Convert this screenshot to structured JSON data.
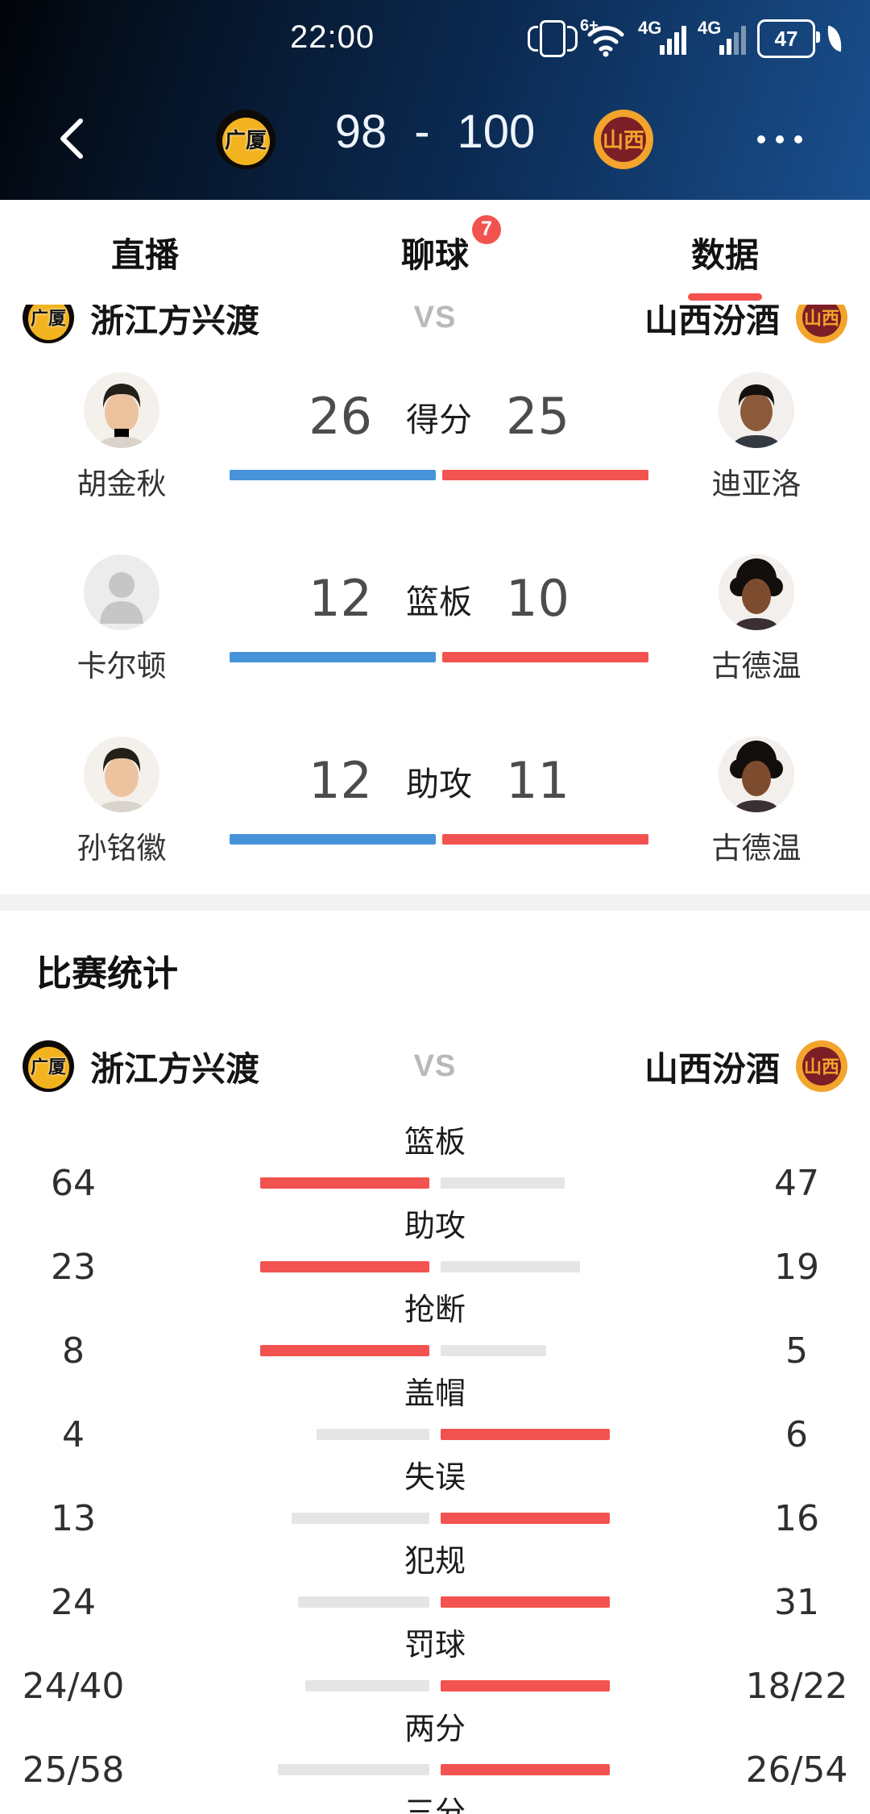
{
  "status_bar": {
    "time": "22:00",
    "wifi_label": "6+",
    "network_1": "4G",
    "network_2": "4G",
    "battery_percent": "47",
    "icons": [
      "vibrate-icon",
      "wifi-icon",
      "signal-icon",
      "signal-icon",
      "battery-icon",
      "leaf-icon"
    ]
  },
  "header": {
    "back_icon": "chevron-left",
    "more_icon": "ellipsis",
    "home_logo_text": "广厦",
    "away_logo_text": "山西",
    "score_home": "98",
    "score_sep": "-",
    "score_away": "100"
  },
  "tabs": [
    {
      "label": "直播",
      "active": false
    },
    {
      "label": "聊球",
      "badge": "7",
      "active": false
    },
    {
      "label": "数据",
      "active": true
    }
  ],
  "teams_row": {
    "home_name": "浙江方兴渡",
    "vs": "VS",
    "away_name": "山西汾酒",
    "home_logo_text": "广厦",
    "away_logo_text": "山西"
  },
  "player_stats": {
    "rows": [
      {
        "label": "得分",
        "left": {
          "name": "胡金秋",
          "value": "26",
          "avatar": "photo-light"
        },
        "right": {
          "name": "迪亚洛",
          "value": "25",
          "avatar": "photo-dark"
        }
      },
      {
        "label": "篮板",
        "left": {
          "name": "卡尔顿",
          "value": "12",
          "avatar": "placeholder"
        },
        "right": {
          "name": "古德温",
          "value": "10",
          "avatar": "photo-dark-afro"
        }
      },
      {
        "label": "助攻",
        "left": {
          "name": "孙铭徽",
          "value": "12",
          "avatar": "photo-light"
        },
        "right": {
          "name": "古德温",
          "value": "11",
          "avatar": "photo-dark-afro"
        }
      }
    ]
  },
  "match_stats": {
    "title": "比赛统计",
    "rows": [
      {
        "label": "篮板",
        "left": "64",
        "right": "47"
      },
      {
        "label": "助攻",
        "left": "23",
        "right": "19"
      },
      {
        "label": "抢断",
        "left": "8",
        "right": "5"
      },
      {
        "label": "盖帽",
        "left": "4",
        "right": "6"
      },
      {
        "label": "失误",
        "left": "13",
        "right": "16"
      },
      {
        "label": "犯规",
        "left": "24",
        "right": "31"
      },
      {
        "label": "罚球",
        "left": "24/40",
        "right": "18/22"
      },
      {
        "label": "两分",
        "left": "25/58",
        "right": "26/54"
      },
      {
        "label": "三分",
        "left": "",
        "right": ""
      }
    ]
  },
  "colors": {
    "accent_red": "#f4524e",
    "badge_red": "#f3534f",
    "bar_blue": "#4793d9",
    "bar_red": "#f25350",
    "bar_gray": "#e5e5e5",
    "header_gradient_start": "#010409",
    "header_gradient_end": "#1a4f8e",
    "home_logo_bg": "#0d0a07",
    "home_logo_inner": "#f3b31f",
    "away_logo_bg": "#f2a42c",
    "away_logo_inner": "#7c1e26"
  }
}
